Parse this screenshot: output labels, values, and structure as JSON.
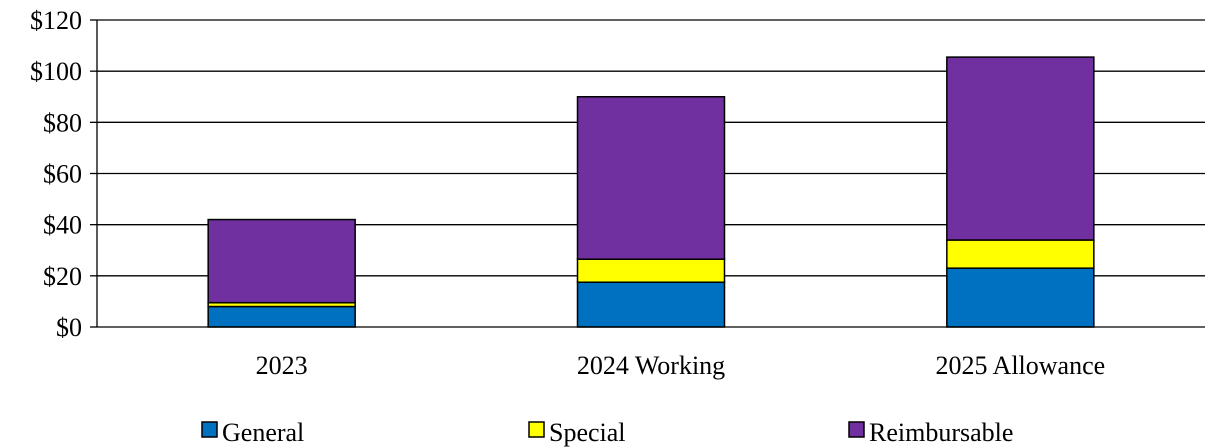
{
  "chart_data": {
    "type": "bar",
    "stacked": true,
    "categories": [
      "2023",
      "2024 Working",
      "2025 Allowance"
    ],
    "series": [
      {
        "name": "General",
        "values": [
          8,
          17.5,
          23
        ],
        "color": "#0070C0"
      },
      {
        "name": "Special",
        "values": [
          1.5,
          9,
          11
        ],
        "color": "#FFFF00"
      },
      {
        "name": "Reimbursable",
        "values": [
          32.5,
          63.5,
          71.5
        ],
        "color": "#7030A0"
      }
    ],
    "ylim": [
      0,
      120
    ],
    "yticks": [
      "$0",
      "$20",
      "$40",
      "$60",
      "$80",
      "$100",
      "$120"
    ],
    "grid": true,
    "legend_position": "bottom",
    "title": "",
    "xlabel": "",
    "ylabel": ""
  }
}
